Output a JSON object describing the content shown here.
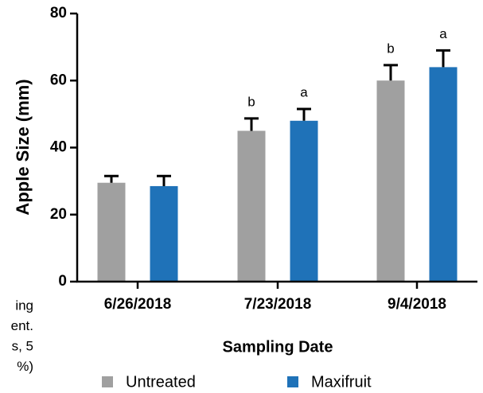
{
  "chart_data": {
    "type": "bar",
    "ylabel": "Apple Size (mm)",
    "xlabel": "Sampling Date",
    "categories": [
      "6/26/2018",
      "7/23/2018",
      "9/4/2018"
    ],
    "series": [
      {
        "name": "Untreated",
        "color": "#a0a0a0",
        "values": [
          29.5,
          45,
          60
        ],
        "errors": [
          2,
          3.7,
          4.6
        ],
        "bar_labels": [
          null,
          "b",
          "b"
        ]
      },
      {
        "name": "Maxifruit",
        "color": "#1f72b8",
        "values": [
          28.5,
          48,
          64
        ],
        "errors": [
          3,
          3.5,
          5
        ],
        "bar_labels": [
          null,
          "a",
          "a"
        ]
      }
    ],
    "ylim": [
      0,
      80
    ],
    "yticks": [
      0,
      20,
      40,
      60,
      80
    ],
    "legend": "bottom",
    "side_text": [
      "ing",
      "ent.",
      "s, 5",
      "%)"
    ]
  }
}
